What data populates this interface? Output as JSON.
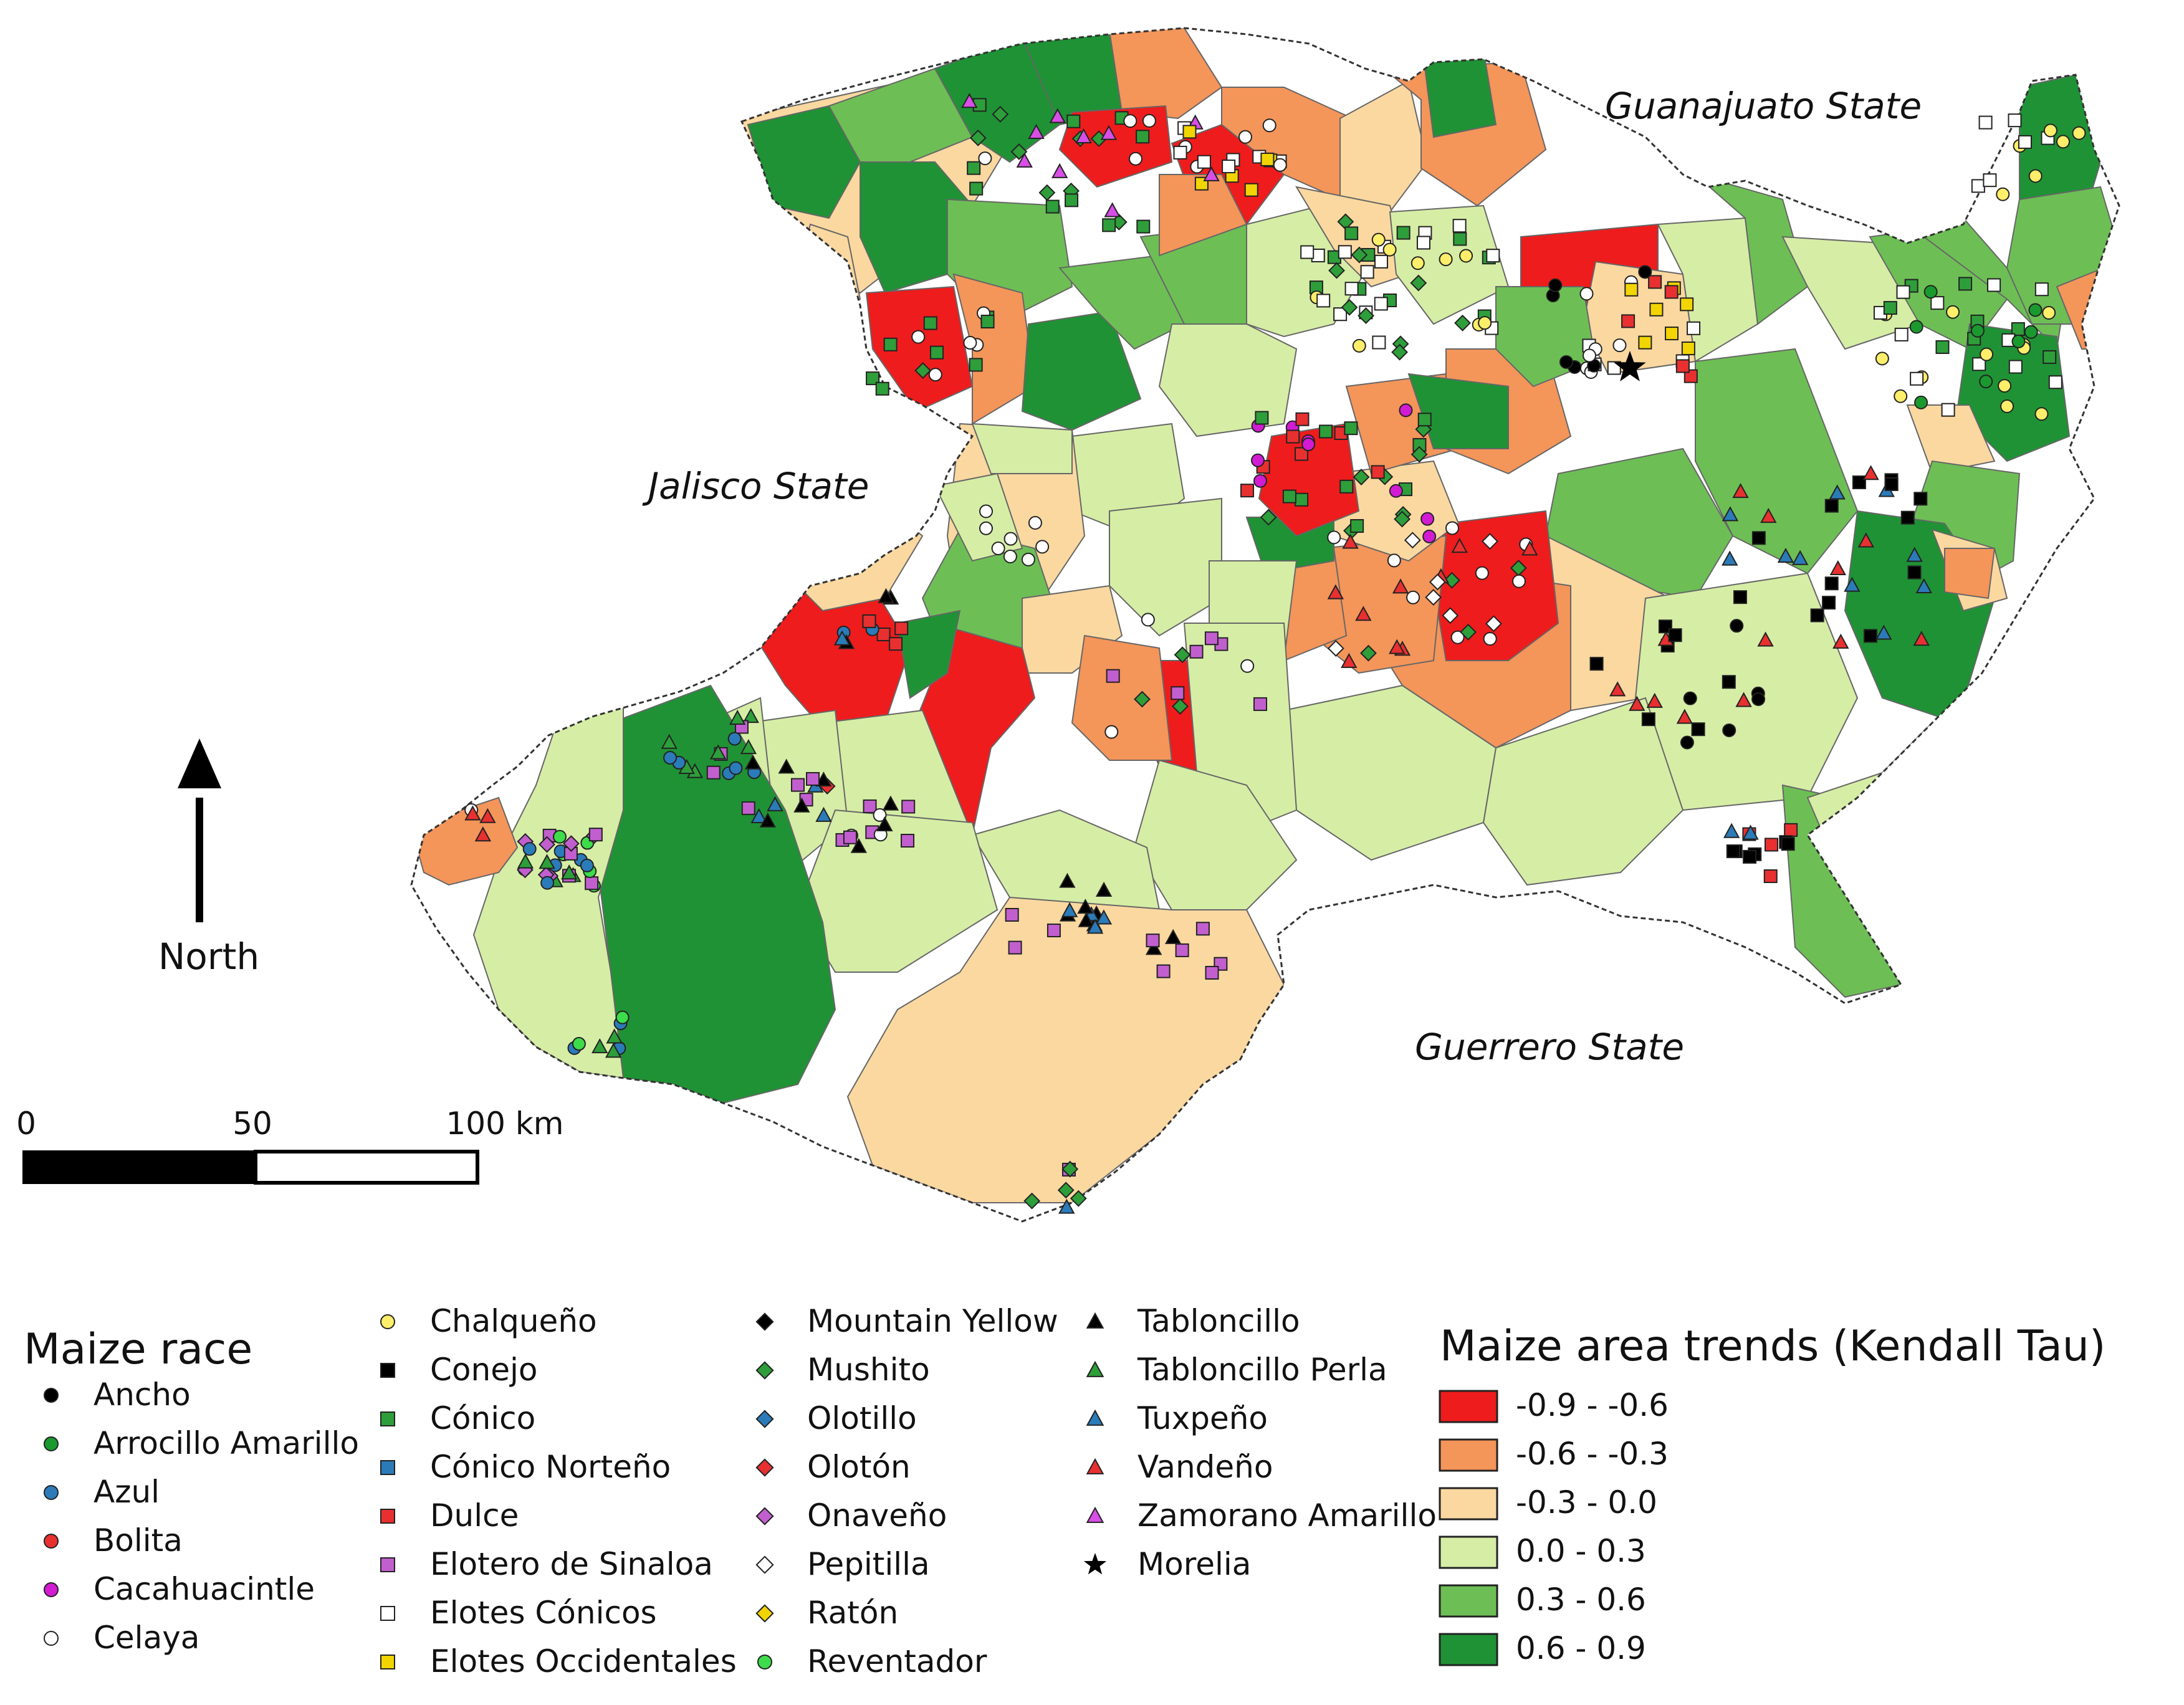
{
  "map": {
    "region_labels": {
      "north_east": "Guanajuato State",
      "west": "Jalisco State",
      "south": "Guerrero State"
    },
    "north_arrow_label": "North",
    "scale_bar": {
      "labels": [
        "0",
        "50",
        "100 km"
      ]
    }
  },
  "legend_race": {
    "title": "Maize race",
    "items": [
      {
        "label": "Ancho",
        "shape": "circle",
        "fill": "#000000"
      },
      {
        "label": "Arrocillo Amarillo",
        "shape": "circle",
        "fill": "#1a9a2e"
      },
      {
        "label": "Azul",
        "shape": "circle",
        "fill": "#2b7bb9"
      },
      {
        "label": "Bolita",
        "shape": "circle",
        "fill": "#e83030"
      },
      {
        "label": "Cacahuacintle",
        "shape": "circle",
        "fill": "#d21bd2"
      },
      {
        "label": "Celaya",
        "shape": "circle",
        "fill": "#ffffff"
      },
      {
        "label": "Chalqueño",
        "shape": "circle",
        "fill": "#ffee6a"
      },
      {
        "label": "Conejo",
        "shape": "square",
        "fill": "#000000"
      },
      {
        "label": "Cónico",
        "shape": "square",
        "fill": "#2e9e3a"
      },
      {
        "label": "Cónico Norteño",
        "shape": "square",
        "fill": "#2b7bb9"
      },
      {
        "label": "Dulce",
        "shape": "square",
        "fill": "#e83030"
      },
      {
        "label": "Elotero de Sinaloa",
        "shape": "square",
        "fill": "#c25fcf"
      },
      {
        "label": "Elotes Cónicos",
        "shape": "square",
        "fill": "#ffffff"
      },
      {
        "label": "Elotes Occidentales",
        "shape": "square",
        "fill": "#f2d500"
      },
      {
        "label": "Mountain Yellow",
        "shape": "diamond",
        "fill": "#000000"
      },
      {
        "label": "Mushito",
        "shape": "diamond",
        "fill": "#2e9e3a"
      },
      {
        "label": "Olotillo",
        "shape": "diamond",
        "fill": "#2b7bb9"
      },
      {
        "label": "Olotón",
        "shape": "diamond",
        "fill": "#e83030"
      },
      {
        "label": "Onaveño",
        "shape": "diamond",
        "fill": "#c25fcf"
      },
      {
        "label": "Pepitilla",
        "shape": "diamond",
        "fill": "#ffffff"
      },
      {
        "label": "Ratón",
        "shape": "diamond",
        "fill": "#f2d500"
      },
      {
        "label": "Reventador",
        "shape": "circle",
        "fill": "#3ddc4a"
      },
      {
        "label": "Tabloncillo",
        "shape": "triangle",
        "fill": "#000000"
      },
      {
        "label": "Tabloncillo Perla",
        "shape": "triangle",
        "fill": "#2e9e3a"
      },
      {
        "label": "Tuxpeño",
        "shape": "triangle",
        "fill": "#2b7bb9"
      },
      {
        "label": "Vandeño",
        "shape": "triangle",
        "fill": "#e83030"
      },
      {
        "label": "Zamorano Amarillo",
        "shape": "triangle",
        "fill": "#d84ee6"
      },
      {
        "label": "Morelia",
        "shape": "star",
        "fill": "#000000"
      }
    ]
  },
  "legend_trend": {
    "title": "Maize area trends (Kendall Tau)",
    "classes": [
      {
        "label": "-0.9 - -0.6",
        "color": "#ee1c1c"
      },
      {
        "label": "-0.6 - -0.3",
        "color": "#f4955a"
      },
      {
        "label": "-0.3 - 0.0",
        "color": "#fad8a0"
      },
      {
        "label": "0.0 - 0.3",
        "color": "#d6eda6"
      },
      {
        "label": "0.3 - 0.6",
        "color": "#6dbf55"
      },
      {
        "label": "0.6 - 0.9",
        "color": "#1f9235"
      }
    ]
  }
}
